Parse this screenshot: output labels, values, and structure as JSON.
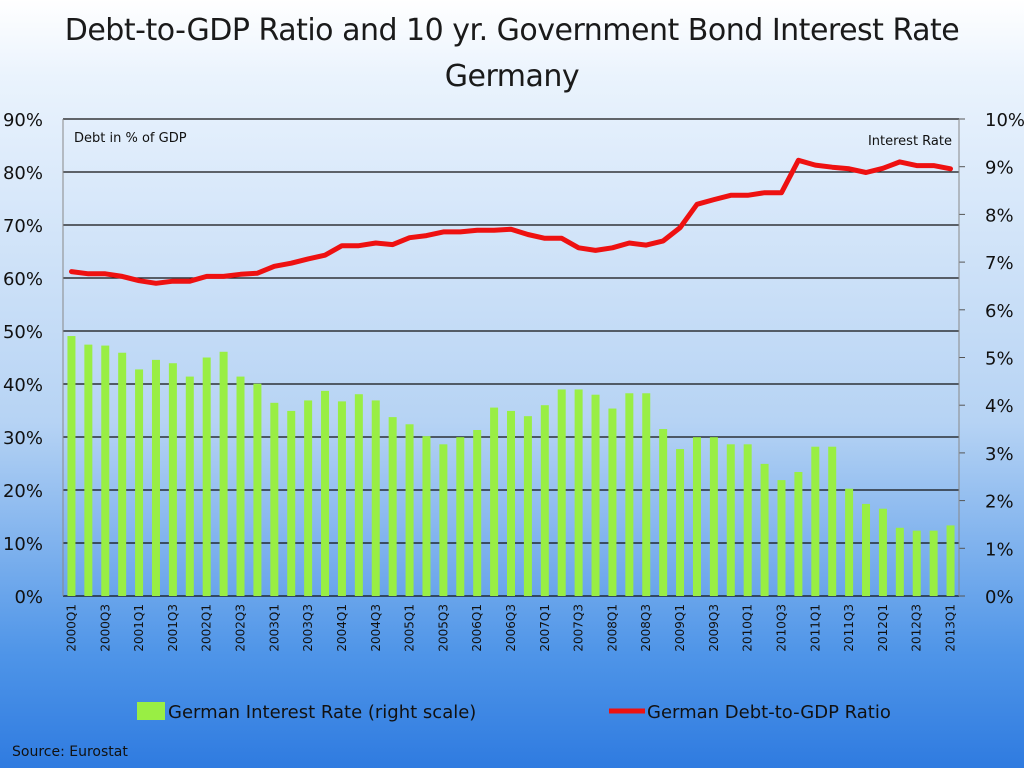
{
  "chart_data": {
    "type": "bar+line",
    "title_line1": "Debt-to-GDP Ratio and 10 yr. Government Bond Interest Rate",
    "title_line2": "Germany",
    "left_axis_label": "Debt in % of GDP",
    "right_axis_label": "Interest Rate",
    "y_left_ticks": [
      "0%",
      "10%",
      "20%",
      "30%",
      "40%",
      "50%",
      "60%",
      "70%",
      "80%",
      "90%"
    ],
    "y_left_lim": [
      0,
      90
    ],
    "y_right_ticks": [
      "0%",
      "1%",
      "2%",
      "3%",
      "4%",
      "5%",
      "6%",
      "7%",
      "8%",
      "9%",
      "10%"
    ],
    "y_right_lim": [
      0,
      10
    ],
    "grid": true,
    "categories": [
      "2000Q1",
      "2000Q2",
      "2000Q3",
      "2000Q4",
      "2001Q1",
      "2001Q2",
      "2001Q3",
      "2001Q4",
      "2002Q1",
      "2002Q2",
      "2002Q3",
      "2002Q4",
      "2003Q1",
      "2003Q2",
      "2003Q3",
      "2003Q4",
      "2004Q1",
      "2004Q2",
      "2004Q3",
      "2004Q4",
      "2005Q1",
      "2005Q2",
      "2005Q3",
      "2005Q4",
      "2006Q1",
      "2006Q2",
      "2006Q3",
      "2006Q4",
      "2007Q1",
      "2007Q2",
      "2007Q3",
      "2007Q4",
      "2008Q1",
      "2008Q2",
      "2008Q3",
      "2008Q4",
      "2009Q1",
      "2009Q2",
      "2009Q3",
      "2009Q4",
      "2010Q1",
      "2010Q2",
      "2010Q3",
      "2010Q4",
      "2011Q1",
      "2011Q2",
      "2011Q3",
      "2011Q4",
      "2012Q1",
      "2012Q2",
      "2012Q3",
      "2012Q4",
      "2013Q1"
    ],
    "x_tick_labels": [
      "2000Q1",
      "",
      "2000Q3",
      "",
      "2001Q1",
      "",
      "2001Q3",
      "",
      "2002Q1",
      "",
      "2002Q3",
      "",
      "2003Q1",
      "",
      "2003Q3",
      "",
      "2004Q1",
      "",
      "2004Q3",
      "",
      "2005Q1",
      "",
      "2005Q3",
      "",
      "2006Q1",
      "",
      "2006Q3",
      "",
      "2007Q1",
      "",
      "2007Q3",
      "",
      "2008Q1",
      "",
      "2008Q3",
      "",
      "2009Q1",
      "",
      "2009Q3",
      "",
      "2010Q1",
      "",
      "2010Q3",
      "",
      "2011Q1",
      "",
      "2011Q3",
      "",
      "2012Q1",
      "",
      "2012Q3",
      "",
      "2013Q1"
    ],
    "series": [
      {
        "name": "German Interest Rate  (right scale)",
        "type": "bar",
        "axis": "right",
        "color": "#99ee44",
        "values": [
          5.45,
          5.27,
          5.25,
          5.1,
          4.75,
          4.95,
          4.88,
          4.6,
          5.0,
          5.12,
          4.6,
          4.45,
          4.05,
          3.88,
          4.1,
          4.3,
          4.08,
          4.23,
          4.1,
          3.75,
          3.6,
          3.35,
          3.18,
          3.33,
          3.48,
          3.95,
          3.88,
          3.77,
          4.0,
          4.33,
          4.33,
          4.22,
          3.93,
          4.25,
          4.25,
          3.5,
          3.08,
          3.33,
          3.33,
          3.18,
          3.18,
          2.77,
          2.43,
          2.6,
          3.13,
          3.13,
          2.25,
          1.93,
          1.83,
          1.43,
          1.37,
          1.37,
          1.48
        ]
      },
      {
        "name": "German Debt-to-GDP Ratio",
        "type": "line",
        "axis": "left",
        "color": "#ee1111",
        "values": [
          61.2,
          60.8,
          60.8,
          60.3,
          59.5,
          59.0,
          59.4,
          59.4,
          60.3,
          60.3,
          60.7,
          60.9,
          62.2,
          62.8,
          63.6,
          64.3,
          66.1,
          66.1,
          66.6,
          66.3,
          67.6,
          68.0,
          68.7,
          68.7,
          69.0,
          69.0,
          69.2,
          68.2,
          67.5,
          67.5,
          65.7,
          65.2,
          65.7,
          66.6,
          66.2,
          67.0,
          69.5,
          73.9,
          74.8,
          75.6,
          75.6,
          76.1,
          76.1,
          82.2,
          81.3,
          80.9,
          80.6,
          79.9,
          80.7,
          81.9,
          81.2,
          81.2,
          80.6
        ]
      }
    ],
    "legend": [
      "German Interest Rate  (right scale)",
      "German Debt-to-GDP Ratio"
    ],
    "legend_placement": "bottom"
  },
  "source": "Source:  Eurostat"
}
